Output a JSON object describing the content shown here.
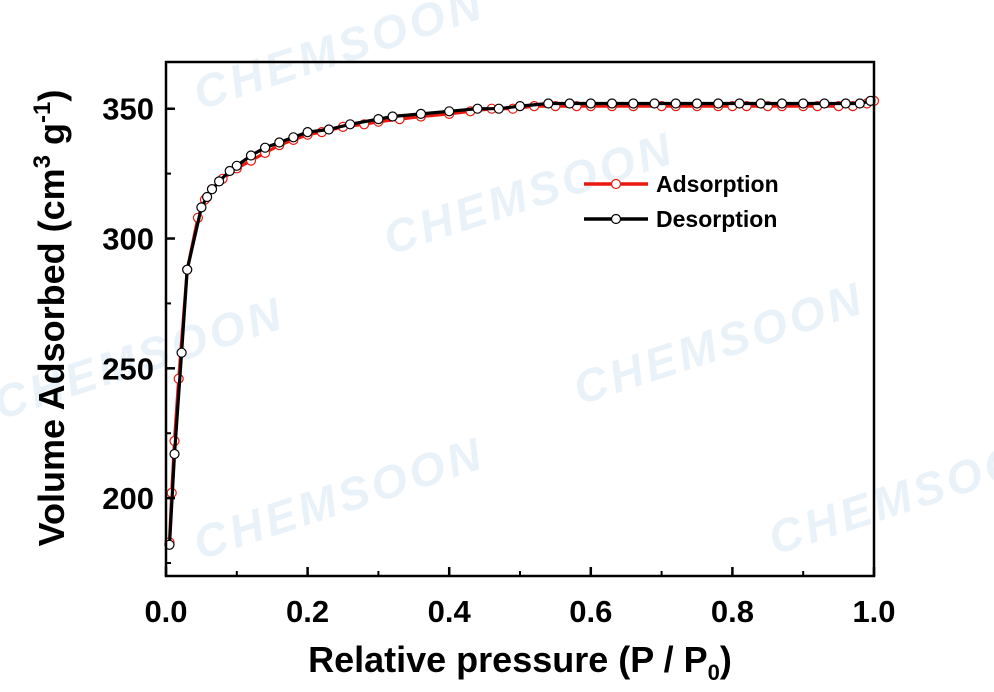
{
  "watermark": "CHEMSOON",
  "chart_data": {
    "type": "line",
    "xlabel": "Relative pressure (P / P",
    "xlabel_sub": "0",
    "xlabel_end": ")",
    "ylabel": "Volume Adsorbed (cm",
    "ylabel_sup1": "3",
    "ylabel_mid": " g",
    "ylabel_sup2": "-1",
    "ylabel_end": ")",
    "xlim": [
      0.0,
      1.0
    ],
    "ylim": [
      170,
      368
    ],
    "x_ticks": [
      "0.0",
      "0.2",
      "0.4",
      "0.6",
      "0.8",
      "1.0"
    ],
    "y_ticks": [
      "200",
      "250",
      "300",
      "350"
    ],
    "x_tick_values": [
      0.0,
      0.2,
      0.4,
      0.6,
      0.8,
      1.0
    ],
    "y_tick_values": [
      200,
      250,
      300,
      350
    ],
    "legend_position": "upper-right",
    "series": [
      {
        "name": "Adsorption",
        "color": "#e8190f",
        "marker": "open-circle",
        "points": [
          [
            0.005,
            183
          ],
          [
            0.008,
            202
          ],
          [
            0.012,
            222
          ],
          [
            0.018,
            246
          ],
          [
            0.03,
            288
          ],
          [
            0.045,
            308
          ],
          [
            0.055,
            315
          ],
          [
            0.065,
            319
          ],
          [
            0.08,
            323
          ],
          [
            0.1,
            327
          ],
          [
            0.12,
            330
          ],
          [
            0.14,
            333
          ],
          [
            0.16,
            336
          ],
          [
            0.18,
            338
          ],
          [
            0.2,
            340
          ],
          [
            0.22,
            341
          ],
          [
            0.25,
            343
          ],
          [
            0.28,
            344
          ],
          [
            0.3,
            345
          ],
          [
            0.33,
            346
          ],
          [
            0.36,
            347
          ],
          [
            0.4,
            348
          ],
          [
            0.43,
            349
          ],
          [
            0.46,
            350
          ],
          [
            0.49,
            350
          ],
          [
            0.52,
            351
          ],
          [
            0.55,
            351
          ],
          [
            0.58,
            351
          ],
          [
            0.6,
            351
          ],
          [
            0.63,
            351
          ],
          [
            0.66,
            351
          ],
          [
            0.7,
            351
          ],
          [
            0.72,
            351
          ],
          [
            0.75,
            351
          ],
          [
            0.78,
            351
          ],
          [
            0.8,
            351
          ],
          [
            0.82,
            351
          ],
          [
            0.85,
            351
          ],
          [
            0.87,
            351
          ],
          [
            0.9,
            351
          ],
          [
            0.92,
            351
          ],
          [
            0.95,
            351
          ],
          [
            0.97,
            351
          ],
          [
            0.99,
            352
          ],
          [
            1.0,
            353
          ]
        ]
      },
      {
        "name": "Desorption",
        "color": "#000000",
        "marker": "open-circle",
        "points": [
          [
            0.995,
            353
          ],
          [
            0.98,
            352
          ],
          [
            0.96,
            352
          ],
          [
            0.93,
            352
          ],
          [
            0.9,
            352
          ],
          [
            0.87,
            352
          ],
          [
            0.84,
            352
          ],
          [
            0.81,
            352
          ],
          [
            0.78,
            352
          ],
          [
            0.75,
            352
          ],
          [
            0.72,
            352
          ],
          [
            0.69,
            352
          ],
          [
            0.66,
            352
          ],
          [
            0.63,
            352
          ],
          [
            0.6,
            352
          ],
          [
            0.57,
            352
          ],
          [
            0.54,
            352
          ],
          [
            0.5,
            351
          ],
          [
            0.47,
            350
          ],
          [
            0.44,
            350
          ],
          [
            0.4,
            349
          ],
          [
            0.36,
            348
          ],
          [
            0.32,
            347
          ],
          [
            0.3,
            346
          ],
          [
            0.26,
            344
          ],
          [
            0.23,
            342
          ],
          [
            0.2,
            341
          ],
          [
            0.18,
            339
          ],
          [
            0.16,
            337
          ],
          [
            0.14,
            335
          ],
          [
            0.12,
            332
          ],
          [
            0.1,
            328
          ],
          [
            0.09,
            326
          ],
          [
            0.075,
            322
          ],
          [
            0.065,
            319
          ],
          [
            0.058,
            316
          ],
          [
            0.05,
            312
          ],
          [
            0.03,
            288
          ],
          [
            0.022,
            256
          ],
          [
            0.012,
            217
          ],
          [
            0.005,
            182
          ]
        ]
      }
    ]
  }
}
